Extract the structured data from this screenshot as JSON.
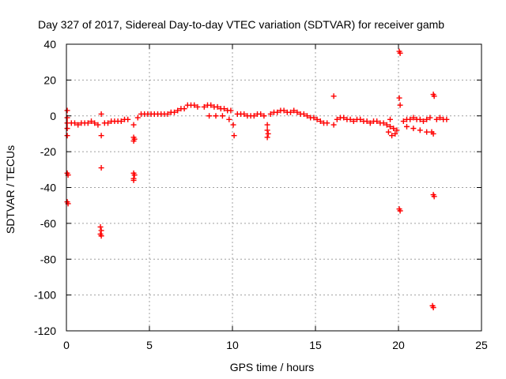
{
  "chart_data": {
    "type": "scatter",
    "title": "Day 327 of 2017, Sidereal Day-to-day VTEC variation (SDTVAR) for receiver gamb",
    "xlabel": "GPS time / hours",
    "ylabel": "SDTVAR / TECUs",
    "xlim": [
      0,
      25
    ],
    "ylim": [
      -120,
      40
    ],
    "xticks": [
      0,
      5,
      10,
      15,
      20,
      25
    ],
    "yticks": [
      -120,
      -100,
      -80,
      -60,
      -40,
      -20,
      0,
      20,
      40
    ],
    "grid": true,
    "marker": "+",
    "color": "#ff0000",
    "series": [
      {
        "name": "SDTVAR",
        "points": [
          [
            0.05,
            3
          ],
          [
            0.05,
            -1
          ],
          [
            0.05,
            -4
          ],
          [
            0.05,
            -7
          ],
          [
            0.05,
            -11
          ],
          [
            0.05,
            -32
          ],
          [
            0.1,
            -33
          ],
          [
            0.05,
            -48
          ],
          [
            0.1,
            -49
          ],
          [
            0.3,
            -4
          ],
          [
            0.5,
            -4
          ],
          [
            0.7,
            -5
          ],
          [
            0.9,
            -4
          ],
          [
            1.1,
            -4
          ],
          [
            1.3,
            -4
          ],
          [
            1.5,
            -3
          ],
          [
            1.7,
            -4
          ],
          [
            1.9,
            -5
          ],
          [
            2.1,
            1
          ],
          [
            2.1,
            -11
          ],
          [
            2.1,
            -29
          ],
          [
            2.05,
            -62
          ],
          [
            2.1,
            -64
          ],
          [
            2.05,
            -66
          ],
          [
            2.1,
            -67
          ],
          [
            2.3,
            -4
          ],
          [
            2.5,
            -4
          ],
          [
            2.7,
            -3
          ],
          [
            2.9,
            -3
          ],
          [
            3.1,
            -3
          ],
          [
            3.3,
            -3
          ],
          [
            3.5,
            -2
          ],
          [
            3.7,
            -2
          ],
          [
            4.05,
            -5
          ],
          [
            4.05,
            -12
          ],
          [
            4.1,
            -13
          ],
          [
            4.05,
            -14
          ],
          [
            4.05,
            -32
          ],
          [
            4.1,
            -33
          ],
          [
            4.05,
            -35
          ],
          [
            4.05,
            -36
          ],
          [
            4.3,
            -1
          ],
          [
            4.5,
            1
          ],
          [
            4.7,
            1
          ],
          [
            4.9,
            1
          ],
          [
            5.1,
            1
          ],
          [
            5.3,
            1
          ],
          [
            5.5,
            1
          ],
          [
            5.7,
            1
          ],
          [
            5.9,
            1
          ],
          [
            6.1,
            1
          ],
          [
            6.3,
            2
          ],
          [
            6.5,
            2
          ],
          [
            6.7,
            3
          ],
          [
            6.9,
            4
          ],
          [
            7.1,
            4
          ],
          [
            7.3,
            6
          ],
          [
            7.5,
            6
          ],
          [
            7.7,
            6
          ],
          [
            7.9,
            5
          ],
          [
            8.3,
            5
          ],
          [
            8.5,
            6
          ],
          [
            8.7,
            6
          ],
          [
            8.9,
            5
          ],
          [
            9.1,
            5
          ],
          [
            9.3,
            4
          ],
          [
            9.5,
            4
          ],
          [
            9.7,
            3
          ],
          [
            9.9,
            3
          ],
          [
            8.6,
            0
          ],
          [
            9.0,
            0
          ],
          [
            9.4,
            0
          ],
          [
            9.8,
            -2
          ],
          [
            10.05,
            -5
          ],
          [
            10.1,
            -11
          ],
          [
            10.3,
            1
          ],
          [
            10.5,
            1
          ],
          [
            10.7,
            1
          ],
          [
            10.9,
            0
          ],
          [
            11.1,
            0
          ],
          [
            11.3,
            0
          ],
          [
            11.5,
            1
          ],
          [
            11.7,
            1
          ],
          [
            11.9,
            0
          ],
          [
            12.1,
            -5
          ],
          [
            12.1,
            -8
          ],
          [
            12.15,
            -10
          ],
          [
            12.1,
            -12
          ],
          [
            12.3,
            1
          ],
          [
            12.5,
            2
          ],
          [
            12.7,
            2
          ],
          [
            12.9,
            3
          ],
          [
            13.1,
            3
          ],
          [
            13.3,
            2
          ],
          [
            13.5,
            2
          ],
          [
            13.7,
            3
          ],
          [
            13.9,
            2
          ],
          [
            14.1,
            1
          ],
          [
            14.3,
            1
          ],
          [
            14.5,
            0
          ],
          [
            14.7,
            -1
          ],
          [
            14.9,
            -1
          ],
          [
            15.1,
            -2
          ],
          [
            15.3,
            -3
          ],
          [
            15.5,
            -4
          ],
          [
            15.7,
            -4
          ],
          [
            16.1,
            11
          ],
          [
            16.1,
            -5
          ],
          [
            16.3,
            -2
          ],
          [
            16.5,
            -1
          ],
          [
            16.7,
            -1
          ],
          [
            16.9,
            -2
          ],
          [
            17.1,
            -2
          ],
          [
            17.3,
            -3
          ],
          [
            17.5,
            -2
          ],
          [
            17.7,
            -2
          ],
          [
            17.9,
            -3
          ],
          [
            18.1,
            -3
          ],
          [
            18.3,
            -4
          ],
          [
            18.5,
            -3
          ],
          [
            18.7,
            -3
          ],
          [
            18.9,
            -4
          ],
          [
            19.1,
            -4
          ],
          [
            19.3,
            -5
          ],
          [
            19.5,
            -6
          ],
          [
            19.7,
            -7
          ],
          [
            19.9,
            -8
          ],
          [
            19.4,
            -9
          ],
          [
            19.6,
            -11
          ],
          [
            19.8,
            -10
          ],
          [
            19.5,
            -2
          ],
          [
            20.05,
            36
          ],
          [
            20.1,
            35
          ],
          [
            20.05,
            10
          ],
          [
            20.1,
            6
          ],
          [
            20.05,
            -52
          ],
          [
            20.1,
            -53
          ],
          [
            20.3,
            -3
          ],
          [
            20.5,
            -2
          ],
          [
            20.7,
            -2
          ],
          [
            20.9,
            -1
          ],
          [
            21.1,
            -2
          ],
          [
            21.3,
            -2
          ],
          [
            21.5,
            -3
          ],
          [
            21.7,
            -2
          ],
          [
            21.9,
            -1
          ],
          [
            20.5,
            -6
          ],
          [
            20.9,
            -7
          ],
          [
            21.3,
            -8
          ],
          [
            21.7,
            -9
          ],
          [
            22.0,
            -9
          ],
          [
            22.1,
            12
          ],
          [
            22.15,
            11
          ],
          [
            22.1,
            -10
          ],
          [
            22.1,
            -44
          ],
          [
            22.15,
            -45
          ],
          [
            22.05,
            -106
          ],
          [
            22.1,
            -107
          ],
          [
            22.3,
            -2
          ],
          [
            22.5,
            -1
          ],
          [
            22.7,
            -2
          ],
          [
            22.9,
            -2
          ]
        ]
      }
    ]
  }
}
